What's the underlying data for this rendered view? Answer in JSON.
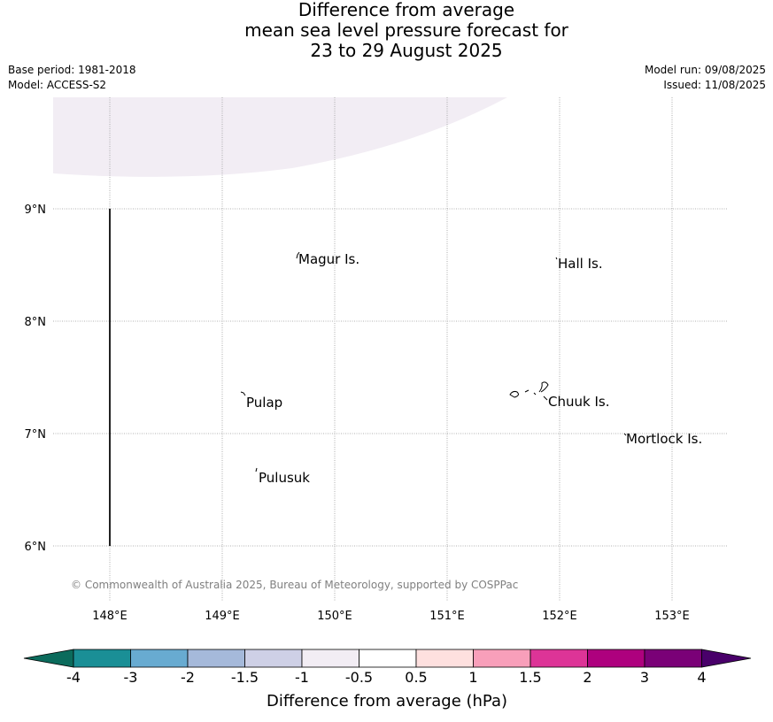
{
  "title": {
    "line1": "Difference from average",
    "line2": "mean sea level pressure forecast for",
    "line3": "23 to 29 August 2025"
  },
  "meta": {
    "base_period": "Base period: 1981-2018",
    "model": "Model: ACCESS-S2",
    "model_run": "Model run: 09/08/2025",
    "issued": "Issued: 11/08/2025"
  },
  "map": {
    "lon_range": [
      147.5,
      153.5
    ],
    "lat_range": [
      5.7,
      9.98
    ],
    "lat_gridlines": [
      {
        "value": 9,
        "label": "9°N"
      },
      {
        "value": 8,
        "label": "8°N"
      },
      {
        "value": 7,
        "label": "7°N"
      },
      {
        "value": 6,
        "label": "6°N"
      }
    ],
    "lon_gridlines": [
      {
        "value": 148,
        "label": "148°E"
      },
      {
        "value": 149,
        "label": "149°E"
      },
      {
        "value": 150,
        "label": "150°E"
      },
      {
        "value": 151,
        "label": "151°E"
      },
      {
        "value": 152,
        "label": "152°E"
      },
      {
        "value": 153,
        "label": "153°E"
      }
    ],
    "places": [
      {
        "name": "Magur Is.",
        "lon": 149.67,
        "lat": 8.55
      },
      {
        "name": "Hall Is.",
        "lon": 151.98,
        "lat": 8.55
      },
      {
        "name": "Pulap",
        "lon": 149.18,
        "lat": 7.33
      },
      {
        "name": "Chuuk Is.",
        "lon": 151.85,
        "lat": 7.38
      },
      {
        "name": "Mortlock Is.",
        "lon": 152.58,
        "lat": 7.0
      },
      {
        "name": "Pulusuk",
        "lon": 149.3,
        "lat": 6.68
      }
    ],
    "reference_line": {
      "lon": 148.0,
      "lat_from": 6.0,
      "lat_to": 9.0
    },
    "shaded_region": {
      "band": "-1 to -0.5",
      "color": "#f2edf4"
    },
    "copyright": "© Commonwealth of Australia 2025, Bureau of Meteorology, supported by COSPPac"
  },
  "colorbar": {
    "title": "Difference from average (hPa)",
    "ticks": [
      "-4",
      "-3",
      "-2",
      "-1.5",
      "-1",
      "-0.5",
      "0.5",
      "1",
      "1.5",
      "2",
      "3",
      "4"
    ],
    "colors": [
      "#1a8f96",
      "#68abd1",
      "#a5b9da",
      "#ced0e6",
      "#f2edf4",
      "#ffffff",
      "#fee0df",
      "#f89fba",
      "#dd3497",
      "#ae017e",
      "#7a0177"
    ],
    "under_color": "#0b6b5c",
    "over_color": "#49006a"
  }
}
